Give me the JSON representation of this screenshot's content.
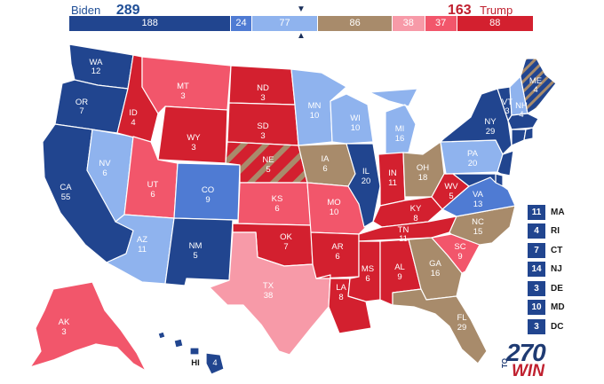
{
  "header": {
    "left_candidate": "Biden",
    "left_total": "289",
    "right_candidate": "Trump",
    "right_total": "163",
    "marker": "▼",
    "marker_bottom": "▲",
    "segments": [
      {
        "value": "188",
        "category": "safe-dem",
        "color": "#21458f",
        "votes": 188
      },
      {
        "value": "24",
        "category": "likely-dem",
        "color": "#4f7bd3",
        "votes": 24
      },
      {
        "value": "77",
        "category": "leans-dem",
        "color": "#8fb3ee",
        "votes": 77
      },
      {
        "value": "86",
        "category": "toss-up",
        "color": "#a88b6b",
        "votes": 86
      },
      {
        "value": "38",
        "category": "leans-rep",
        "color": "#f79aa8",
        "votes": 38
      },
      {
        "value": "37",
        "category": "likely-rep",
        "color": "#f2566b",
        "votes": 37
      },
      {
        "value": "88",
        "category": "safe-rep",
        "color": "#d3202f",
        "votes": 88
      }
    ]
  },
  "colors": {
    "safe-dem": "#21458f",
    "likely-dem": "#4f7bd3",
    "leans-dem": "#8fb3ee",
    "toss-up": "#a88b6b",
    "leans-rep": "#f79aa8",
    "likely-rep": "#f2566b",
    "safe-rep": "#d3202f"
  },
  "map_labels": {
    "WA": {
      "abbr": "WA",
      "votes": "12"
    },
    "OR": {
      "abbr": "OR",
      "votes": "7"
    },
    "CA": {
      "abbr": "CA",
      "votes": "55"
    },
    "NV": {
      "abbr": "NV",
      "votes": "6"
    },
    "ID": {
      "abbr": "ID",
      "votes": "4"
    },
    "MT": {
      "abbr": "MT",
      "votes": "3"
    },
    "WY": {
      "abbr": "WY",
      "votes": "3"
    },
    "UT": {
      "abbr": "UT",
      "votes": "6"
    },
    "CO": {
      "abbr": "CO",
      "votes": "9"
    },
    "AZ": {
      "abbr": "AZ",
      "votes": "11"
    },
    "NM": {
      "abbr": "NM",
      "votes": "5"
    },
    "ND": {
      "abbr": "ND",
      "votes": "3"
    },
    "SD": {
      "abbr": "SD",
      "votes": "3"
    },
    "NE": {
      "abbr": "NE",
      "votes": "5"
    },
    "KS": {
      "abbr": "KS",
      "votes": "6"
    },
    "OK": {
      "abbr": "OK",
      "votes": "7"
    },
    "TX": {
      "abbr": "TX",
      "votes": "38"
    },
    "MN": {
      "abbr": "MN",
      "votes": "10"
    },
    "IA": {
      "abbr": "IA",
      "votes": "6"
    },
    "MO": {
      "abbr": "MO",
      "votes": "10"
    },
    "AR": {
      "abbr": "AR",
      "votes": "6"
    },
    "LA": {
      "abbr": "LA",
      "votes": "8"
    },
    "WI": {
      "abbr": "WI",
      "votes": "10"
    },
    "IL": {
      "abbr": "IL",
      "votes": "20"
    },
    "MI": {
      "abbr": "MI",
      "votes": "16"
    },
    "IN": {
      "abbr": "IN",
      "votes": "11"
    },
    "OH": {
      "abbr": "OH",
      "votes": "18"
    },
    "KY": {
      "abbr": "KY",
      "votes": "8"
    },
    "TN": {
      "abbr": "TN",
      "votes": "11"
    },
    "MS": {
      "abbr": "MS",
      "votes": "6"
    },
    "AL": {
      "abbr": "AL",
      "votes": "9"
    },
    "GA": {
      "abbr": "GA",
      "votes": "16"
    },
    "FL": {
      "abbr": "FL",
      "votes": "29"
    },
    "SC": {
      "abbr": "SC",
      "votes": "9"
    },
    "NC": {
      "abbr": "NC",
      "votes": "15"
    },
    "VA": {
      "abbr": "VA",
      "votes": "13"
    },
    "WV": {
      "abbr": "WV",
      "votes": "5"
    },
    "PA": {
      "abbr": "PA",
      "votes": "20"
    },
    "NY": {
      "abbr": "NY",
      "votes": "29"
    },
    "VT": {
      "abbr": "VT",
      "votes": "3"
    },
    "NH": {
      "abbr": "NH",
      "votes": "4"
    },
    "ME": {
      "abbr": "ME",
      "votes": "4"
    },
    "AK": {
      "abbr": "AK",
      "votes": "3"
    },
    "HI": {
      "abbr": "HI",
      "votes": "4"
    }
  },
  "small_states": [
    {
      "abbr": "MA",
      "votes": "11",
      "category": "safe-dem"
    },
    {
      "abbr": "RI",
      "votes": "4",
      "category": "safe-dem"
    },
    {
      "abbr": "CT",
      "votes": "7",
      "category": "safe-dem"
    },
    {
      "abbr": "NJ",
      "votes": "14",
      "category": "safe-dem"
    },
    {
      "abbr": "DE",
      "votes": "3",
      "category": "safe-dem"
    },
    {
      "abbr": "MD",
      "votes": "10",
      "category": "safe-dem"
    },
    {
      "abbr": "DC",
      "votes": "3",
      "category": "safe-dem"
    }
  ],
  "logo": {
    "number": "270",
    "to": "TO",
    "win": "WIN"
  }
}
